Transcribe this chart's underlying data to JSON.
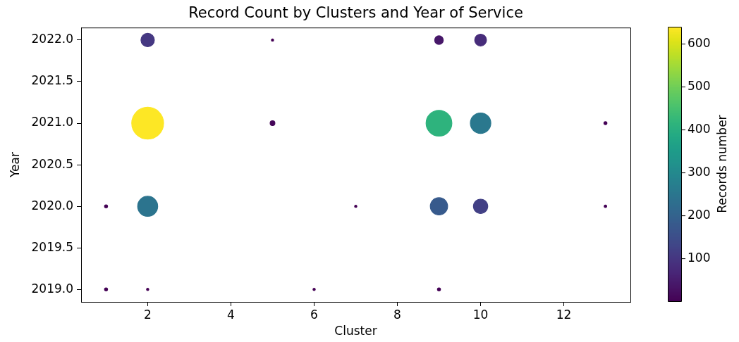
{
  "chart_data": {
    "type": "bubble",
    "title": "Record Count by Clusters and Year of Service",
    "xlabel": "Cluster",
    "ylabel": "Year",
    "clabel": "Records number",
    "x": [
      2,
      5,
      9,
      10,
      2,
      5,
      9,
      10,
      13,
      1,
      2,
      7,
      9,
      10,
      13,
      1,
      2,
      6,
      9
    ],
    "values": [
      2022,
      2022,
      2022,
      2022,
      2021,
      2021,
      2021,
      2021,
      2021,
      2020,
      2020,
      2020,
      2020,
      2020,
      2020,
      2019,
      2019,
      2019,
      2019
    ],
    "cvalues": [
      105,
      1,
      40,
      80,
      640,
      10,
      414,
      256,
      3,
      3,
      245,
      1,
      180,
      120,
      2,
      3,
      1,
      1,
      3
    ],
    "sizes": [
      0.164,
      0.002,
      0.063,
      0.125,
      1,
      0.016,
      0.647,
      0.4,
      0.005,
      0.005,
      0.383,
      0.002,
      0.281,
      0.188,
      0.003,
      0.005,
      0.002,
      0.002,
      0.005
    ],
    "clim": [
      1,
      640
    ],
    "cticks": [
      100,
      200,
      300,
      400,
      500,
      600
    ],
    "xlim": [
      0.4,
      13.6
    ],
    "xticks": [
      2,
      4,
      6,
      8,
      10,
      12
    ],
    "ylim": [
      2018.85,
      2022.15
    ],
    "yticks": [
      {
        "value": 2019,
        "label": "2019.0"
      },
      2019.5,
      {
        "value": 2020,
        "label": "2020.0"
      },
      2020.5,
      {
        "value": 2021,
        "label": "2021.0"
      },
      2021.5,
      {
        "value": 2022,
        "label": "2022.0"
      }
    ],
    "marker": "circle"
  }
}
